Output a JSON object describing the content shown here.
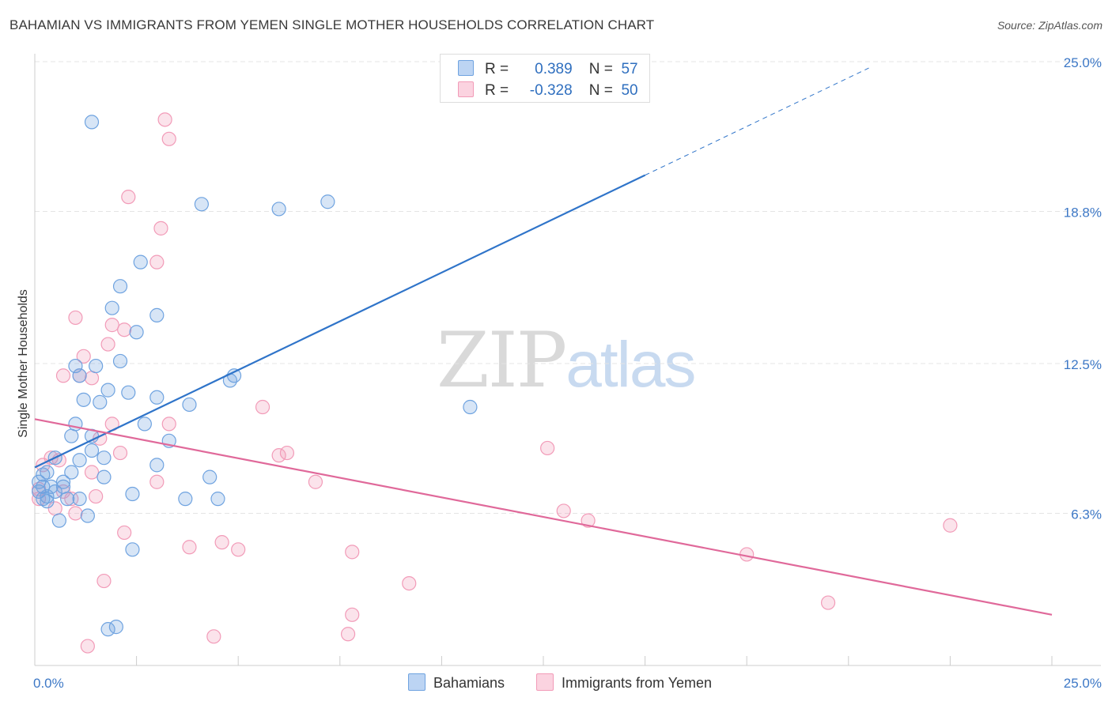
{
  "title": "BAHAMIAN VS IMMIGRANTS FROM YEMEN SINGLE MOTHER HOUSEHOLDS CORRELATION CHART",
  "source": "Source: ZipAtlas.com",
  "watermark": {
    "zip": "ZIP",
    "atlas": "atlas"
  },
  "legend": {
    "r_label": "R =",
    "n_label": "N =",
    "bahamians": {
      "r": "0.389",
      "n": "57"
    },
    "yemen": {
      "r": "-0.328",
      "n": "50"
    }
  },
  "chart_data": {
    "type": "scatter",
    "title": "BAHAMIAN VS IMMIGRANTS FROM YEMEN SINGLE MOTHER HOUSEHOLDS CORRELATION CHART",
    "xlabel": "",
    "ylabel": "Single Mother Households",
    "xlim": [
      0,
      25
    ],
    "ylim": [
      0,
      25
    ],
    "x_tick_labels": [
      "0.0%",
      "25.0%"
    ],
    "y_tick_labels": [
      "6.3%",
      "12.5%",
      "18.8%",
      "25.0%"
    ],
    "y_tick_values": [
      6.3,
      12.5,
      18.8,
      25.0
    ],
    "grid": true,
    "legend_position": "top-center",
    "colors": {
      "bahamians": "#6fa3e0",
      "yemen": "#f29bb8",
      "bahamians_line": "#2f74c9",
      "yemen_line": "#e0699a"
    },
    "series": [
      {
        "name": "Bahamians",
        "r": 0.389,
        "n": 57,
        "trend": {
          "x0": 0,
          "y0": 8.2,
          "x1": 15,
          "y1": 20.3,
          "dash_to_x": 20.5
        },
        "points": [
          [
            1.4,
            22.5
          ],
          [
            4.1,
            19.1
          ],
          [
            6.0,
            18.9
          ],
          [
            7.2,
            19.2
          ],
          [
            2.6,
            16.7
          ],
          [
            2.1,
            15.7
          ],
          [
            1.9,
            14.8
          ],
          [
            3.0,
            14.5
          ],
          [
            2.5,
            13.8
          ],
          [
            2.1,
            12.6
          ],
          [
            1.0,
            12.4
          ],
          [
            1.5,
            12.4
          ],
          [
            1.1,
            12.0
          ],
          [
            4.9,
            12.0
          ],
          [
            4.8,
            11.8
          ],
          [
            1.8,
            11.4
          ],
          [
            2.3,
            11.3
          ],
          [
            3.0,
            11.1
          ],
          [
            1.2,
            11.0
          ],
          [
            1.6,
            10.9
          ],
          [
            3.8,
            10.8
          ],
          [
            10.7,
            10.7
          ],
          [
            1.0,
            10.0
          ],
          [
            2.7,
            10.0
          ],
          [
            0.9,
            9.5
          ],
          [
            1.4,
            9.5
          ],
          [
            3.3,
            9.3
          ],
          [
            1.4,
            8.9
          ],
          [
            0.5,
            8.6
          ],
          [
            1.1,
            8.5
          ],
          [
            1.7,
            8.6
          ],
          [
            3.0,
            8.3
          ],
          [
            0.3,
            8.0
          ],
          [
            0.9,
            8.0
          ],
          [
            0.2,
            7.9
          ],
          [
            1.7,
            7.8
          ],
          [
            4.3,
            7.8
          ],
          [
            0.1,
            7.6
          ],
          [
            0.7,
            7.6
          ],
          [
            0.2,
            7.4
          ],
          [
            0.4,
            7.4
          ],
          [
            0.7,
            7.4
          ],
          [
            0.1,
            7.2
          ],
          [
            0.5,
            7.2
          ],
          [
            0.3,
            7.0
          ],
          [
            2.4,
            7.1
          ],
          [
            0.2,
            6.9
          ],
          [
            0.8,
            6.9
          ],
          [
            1.1,
            6.9
          ],
          [
            3.7,
            6.9
          ],
          [
            4.5,
            6.9
          ],
          [
            0.3,
            6.8
          ],
          [
            1.3,
            6.2
          ],
          [
            0.6,
            6.0
          ],
          [
            2.4,
            4.8
          ],
          [
            2.0,
            1.6
          ],
          [
            1.8,
            1.5
          ]
        ]
      },
      {
        "name": "Immigrants from Yemen",
        "r": -0.328,
        "n": 50,
        "trend": {
          "x0": 0,
          "y0": 10.2,
          "x1": 25,
          "y1": 2.1
        },
        "points": [
          [
            3.2,
            22.6
          ],
          [
            3.3,
            21.8
          ],
          [
            2.3,
            19.4
          ],
          [
            3.1,
            18.1
          ],
          [
            3.0,
            16.7
          ],
          [
            1.0,
            14.4
          ],
          [
            1.9,
            14.1
          ],
          [
            2.2,
            13.9
          ],
          [
            1.8,
            13.3
          ],
          [
            1.2,
            12.8
          ],
          [
            0.7,
            12.0
          ],
          [
            1.1,
            12.0
          ],
          [
            1.4,
            11.9
          ],
          [
            5.6,
            10.7
          ],
          [
            1.9,
            10.0
          ],
          [
            3.3,
            10.0
          ],
          [
            1.6,
            9.4
          ],
          [
            2.1,
            8.8
          ],
          [
            6.0,
            8.7
          ],
          [
            6.2,
            8.8
          ],
          [
            12.6,
            9.0
          ],
          [
            0.4,
            8.6
          ],
          [
            0.6,
            8.5
          ],
          [
            0.2,
            8.3
          ],
          [
            1.4,
            8.0
          ],
          [
            3.0,
            7.6
          ],
          [
            6.9,
            7.6
          ],
          [
            0.1,
            7.3
          ],
          [
            0.7,
            7.2
          ],
          [
            1.5,
            7.0
          ],
          [
            0.1,
            6.9
          ],
          [
            0.9,
            6.9
          ],
          [
            0.5,
            6.5
          ],
          [
            1.0,
            6.3
          ],
          [
            13.0,
            6.4
          ],
          [
            13.6,
            6.0
          ],
          [
            22.5,
            5.8
          ],
          [
            2.2,
            5.5
          ],
          [
            4.6,
            5.1
          ],
          [
            3.8,
            4.9
          ],
          [
            5.0,
            4.8
          ],
          [
            7.8,
            4.7
          ],
          [
            17.5,
            4.6
          ],
          [
            1.7,
            3.5
          ],
          [
            9.2,
            3.4
          ],
          [
            19.5,
            2.6
          ],
          [
            7.8,
            2.1
          ],
          [
            4.4,
            1.2
          ],
          [
            7.7,
            1.3
          ],
          [
            1.3,
            0.8
          ]
        ]
      }
    ]
  },
  "bottom_legend": {
    "bahamians": "Bahamians",
    "yemen": "Immigrants from Yemen"
  }
}
